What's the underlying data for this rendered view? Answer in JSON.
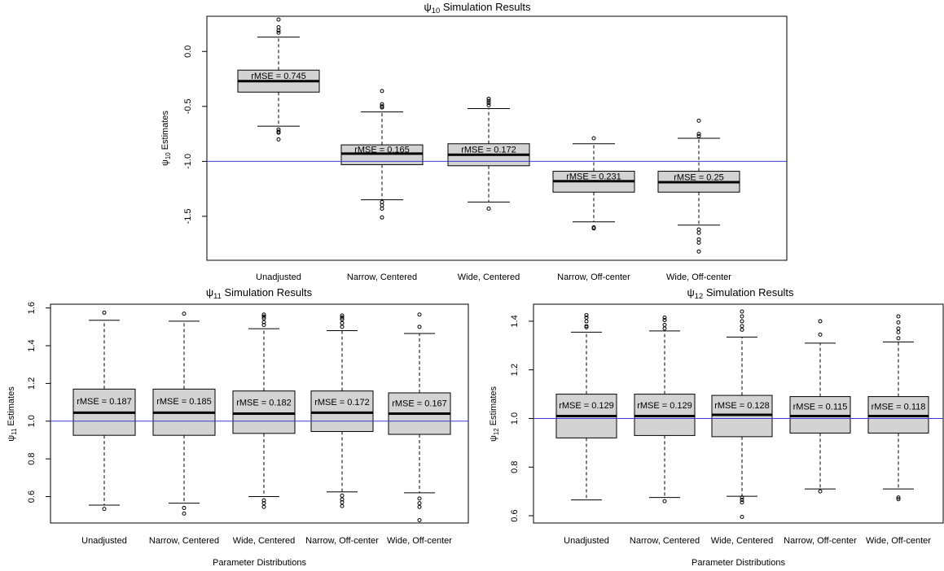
{
  "chart_data": [
    {
      "id": "psi10",
      "type": "boxplot",
      "title_prefix": "ψ",
      "title_sub": "10",
      "title_suffix": " Simulation Results",
      "ylabel_prefix": "ψ",
      "ylabel_sub": "10",
      "ylabel_suffix": " Estimates",
      "xlabel": "",
      "ylim": [
        -1.9,
        0.32
      ],
      "yticks": [
        {
          "v": 0.0,
          "label": "0.0"
        },
        {
          "v": -0.5,
          "label": "-0.5"
        },
        {
          "v": -1.0,
          "label": "-1.0"
        },
        {
          "v": -1.5,
          "label": "-1.5"
        }
      ],
      "reference_line": -1.0,
      "reference_color": "#3b3bd4",
      "box_fill": "#d3d3d3",
      "categories": [
        "Unadjusted",
        "Narrow, Centered",
        "Wide, Centered",
        "Narrow, Off-center",
        "Wide, Off-center"
      ],
      "boxes": [
        {
          "wlo": -0.68,
          "q1": -0.37,
          "med": -0.27,
          "q3": -0.17,
          "whi": 0.13,
          "outliers": [
            0.29,
            0.22,
            0.19,
            0.17,
            -0.71,
            -0.73,
            -0.74,
            -0.8
          ],
          "rmse": "rMSE = 0.745"
        },
        {
          "wlo": -1.35,
          "q1": -1.03,
          "med": -0.93,
          "q3": -0.85,
          "whi": -0.55,
          "outliers": [
            -0.36,
            -0.48,
            -0.5,
            -0.51,
            -1.37,
            -1.4,
            -1.43,
            -1.51
          ],
          "rmse": "rMSE = 0.165"
        },
        {
          "wlo": -1.37,
          "q1": -1.04,
          "med": -0.94,
          "q3": -0.84,
          "whi": -0.52,
          "outliers": [
            -0.43,
            -0.45,
            -0.47,
            -0.49,
            -1.43
          ],
          "rmse": "rMSE = 0.172"
        },
        {
          "wlo": -1.55,
          "q1": -1.28,
          "med": -1.18,
          "q3": -1.09,
          "whi": -0.84,
          "outliers": [
            -0.79,
            -1.6,
            -1.61
          ],
          "rmse": "rMSE = 0.231"
        },
        {
          "wlo": -1.58,
          "q1": -1.28,
          "med": -1.19,
          "q3": -1.09,
          "whi": -0.79,
          "outliers": [
            -0.63,
            -0.75,
            -0.77,
            -1.62,
            -1.65,
            -1.71,
            -1.74,
            -1.82
          ],
          "rmse": "rMSE = 0.25"
        }
      ]
    },
    {
      "id": "psi11",
      "type": "boxplot",
      "title_prefix": "ψ",
      "title_sub": "11",
      "title_suffix": " Simulation Results",
      "ylabel_prefix": "ψ",
      "ylabel_sub": "11",
      "ylabel_suffix": " Estimates",
      "xlabel": "Parameter Distributions",
      "ylim": [
        0.46,
        1.62
      ],
      "yticks": [
        {
          "v": 0.6,
          "label": "0.6"
        },
        {
          "v": 0.8,
          "label": "0.8"
        },
        {
          "v": 1.0,
          "label": "1.0"
        },
        {
          "v": 1.2,
          "label": "1.2"
        },
        {
          "v": 1.4,
          "label": "1.4"
        },
        {
          "v": 1.6,
          "label": "1.6"
        }
      ],
      "reference_line": 1.0,
      "reference_color": "#3b3bd4",
      "box_fill": "#d3d3d3",
      "categories": [
        "Unadjusted",
        "Narrow, Centered",
        "Wide, Centered",
        "Narrow, Off-center",
        "Wide, Off-center"
      ],
      "boxes": [
        {
          "wlo": 0.555,
          "q1": 0.925,
          "med": 1.045,
          "q3": 1.17,
          "whi": 1.535,
          "outliers": [
            1.575,
            0.535
          ],
          "rmse": "rMSE = 0.187"
        },
        {
          "wlo": 0.565,
          "q1": 0.925,
          "med": 1.045,
          "q3": 1.17,
          "whi": 1.53,
          "outliers": [
            1.57,
            0.54,
            0.51
          ],
          "rmse": "rMSE = 0.185"
        },
        {
          "wlo": 0.6,
          "q1": 0.935,
          "med": 1.04,
          "q3": 1.16,
          "whi": 1.49,
          "outliers": [
            1.565,
            1.555,
            1.545,
            1.525,
            1.51,
            0.58,
            0.565,
            0.545
          ],
          "rmse": "rMSE = 0.182"
        },
        {
          "wlo": 0.625,
          "q1": 0.945,
          "med": 1.045,
          "q3": 1.16,
          "whi": 1.48,
          "outliers": [
            1.56,
            1.55,
            1.54,
            1.52,
            1.5,
            0.605,
            0.585,
            0.57,
            0.55
          ],
          "rmse": "rMSE = 0.172"
        },
        {
          "wlo": 0.62,
          "q1": 0.93,
          "med": 1.04,
          "q3": 1.15,
          "whi": 1.465,
          "outliers": [
            1.565,
            1.5,
            0.59,
            0.565,
            0.545,
            0.475
          ],
          "rmse": "rMSE = 0.167"
        }
      ]
    },
    {
      "id": "psi12",
      "type": "boxplot",
      "title_prefix": "ψ",
      "title_sub": "12",
      "title_suffix": " Simulation Results",
      "ylabel_prefix": "ψ",
      "ylabel_sub": "12",
      "ylabel_suffix": " Estimates",
      "xlabel": "Parameter Distributions",
      "ylim": [
        0.57,
        1.47
      ],
      "yticks": [
        {
          "v": 0.6,
          "label": "0.6"
        },
        {
          "v": 0.8,
          "label": "0.8"
        },
        {
          "v": 1.0,
          "label": "1.0"
        },
        {
          "v": 1.2,
          "label": "1.2"
        },
        {
          "v": 1.4,
          "label": "1.4"
        }
      ],
      "reference_line": 1.0,
      "reference_color": "#3b3bd4",
      "box_fill": "#d3d3d3",
      "categories": [
        "Unadjusted",
        "Narrow, Centered",
        "Wide, Centered",
        "Narrow, Off-center",
        "Wide, Off-center"
      ],
      "boxes": [
        {
          "wlo": 0.665,
          "q1": 0.92,
          "med": 1.01,
          "q3": 1.1,
          "whi": 1.355,
          "outliers": [
            1.425,
            1.415,
            1.4,
            1.38,
            1.375
          ],
          "rmse": "rMSE = 0.129"
        },
        {
          "wlo": 0.675,
          "q1": 0.93,
          "med": 1.01,
          "q3": 1.1,
          "whi": 1.36,
          "outliers": [
            1.415,
            1.405,
            1.385,
            1.37,
            0.66
          ],
          "rmse": "rMSE = 0.129"
        },
        {
          "wlo": 0.68,
          "q1": 0.925,
          "med": 1.015,
          "q3": 1.095,
          "whi": 1.335,
          "outliers": [
            1.44,
            1.42,
            1.4,
            1.38,
            1.365,
            0.675,
            0.665,
            0.655,
            0.595
          ],
          "rmse": "rMSE = 0.128"
        },
        {
          "wlo": 0.71,
          "q1": 0.94,
          "med": 1.01,
          "q3": 1.09,
          "whi": 1.31,
          "outliers": [
            1.4,
            1.345,
            0.7
          ],
          "rmse": "rMSE = 0.115"
        },
        {
          "wlo": 0.71,
          "q1": 0.94,
          "med": 1.01,
          "q3": 1.09,
          "whi": 1.315,
          "outliers": [
            1.42,
            1.395,
            1.37,
            1.355,
            1.33,
            0.675,
            0.668
          ],
          "rmse": "rMSE = 0.118"
        }
      ]
    }
  ]
}
